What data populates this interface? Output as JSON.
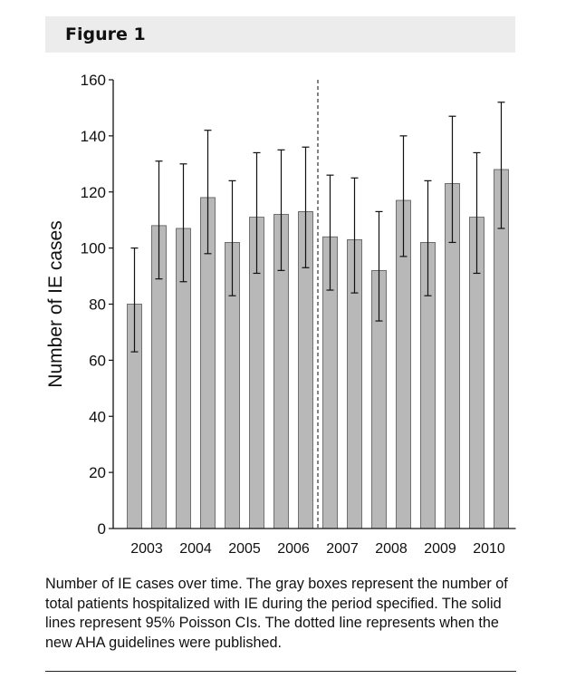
{
  "figure": {
    "label": "Figure 1"
  },
  "caption": "Number of IE cases over time. The gray boxes represent the number of total patients hospitalized with IE during the period specified. The solid lines represent 95% Poisson CIs. The dotted line represents when the new AHA guidelines were published.",
  "chart_data": {
    "type": "bar",
    "ylabel": "Number of IE cases",
    "xlabel": "",
    "ylim": [
      0,
      160
    ],
    "yticks": [
      0,
      20,
      40,
      60,
      80,
      100,
      120,
      140,
      160
    ],
    "xtick_labels": [
      "2003",
      "2004",
      "2005",
      "2006",
      "2007",
      "2008",
      "2009",
      "2010"
    ],
    "bar_color": "#b8b8b8",
    "grid": false,
    "error_bars": "95% Poisson CI",
    "vertical_reference_line": {
      "after_bar_index": 8,
      "style": "dashed"
    },
    "values": [
      80,
      108,
      107,
      118,
      102,
      111,
      112,
      113,
      104,
      103,
      92,
      117,
      102,
      123,
      111,
      128
    ],
    "ci_low": [
      63,
      89,
      88,
      98,
      83,
      91,
      92,
      93,
      85,
      84,
      74,
      97,
      83,
      102,
      91,
      107
    ],
    "ci_high": [
      100,
      131,
      130,
      142,
      124,
      134,
      135,
      136,
      126,
      125,
      113,
      140,
      124,
      147,
      134,
      152
    ]
  }
}
